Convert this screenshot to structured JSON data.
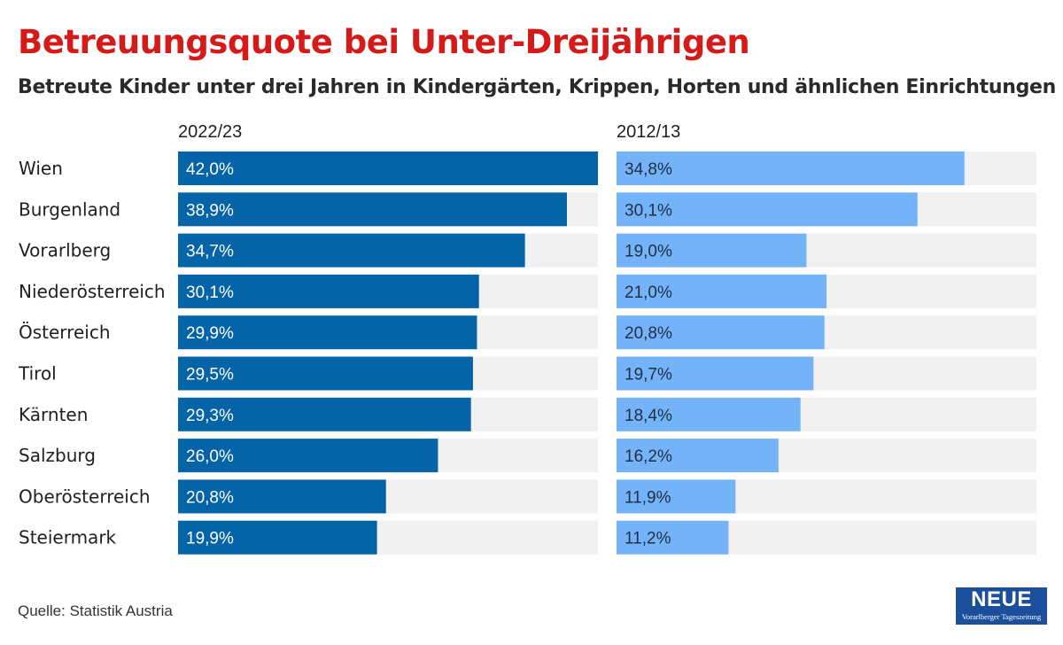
{
  "header": {
    "title": "Betreuungsquote bei Unter-Dreijährigen",
    "subtitle": "Betreute Kinder unter drei Jahren in Kindergärten, Krippen, Horten und ähnlichen Einrichtungen"
  },
  "colors": {
    "title": "#d51a1a",
    "series_2022": "#0563a8",
    "series_2012": "#74b3f8",
    "track": "#f1f1f1"
  },
  "chart_data": {
    "type": "bar",
    "orientation": "horizontal",
    "value_format": "percent, comma decimal",
    "categories": [
      "Wien",
      "Burgenland",
      "Vorarlberg",
      "Niederösterreich",
      "Österreich",
      "Tirol",
      "Kärnten",
      "Salzburg",
      "Oberösterreich",
      "Steiermark"
    ],
    "series": [
      {
        "name": "2022/23",
        "values": [
          42.0,
          38.9,
          34.7,
          30.1,
          29.9,
          29.5,
          29.3,
          26.0,
          20.8,
          19.9
        ],
        "labels": [
          "42,0%",
          "38,9%",
          "34,7%",
          "30,1%",
          "29,9%",
          "29,5%",
          "29,3%",
          "26,0%",
          "20,8%",
          "19,9%"
        ]
      },
      {
        "name": "2012/13",
        "values": [
          34.8,
          30.1,
          19.0,
          21.0,
          20.8,
          19.7,
          18.4,
          16.2,
          11.9,
          11.2
        ],
        "labels": [
          "34,8%",
          "30,1%",
          "19,0%",
          "21,0%",
          "20,8%",
          "19,7%",
          "18,4%",
          "16,2%",
          "11,9%",
          "11,2%"
        ]
      }
    ],
    "xlim": [
      0,
      42
    ]
  },
  "footer": {
    "source": "Quelle: Statistik Austria",
    "logo_main": "NEUE",
    "logo_sub": "Vorarlberger Tageszeitung"
  }
}
